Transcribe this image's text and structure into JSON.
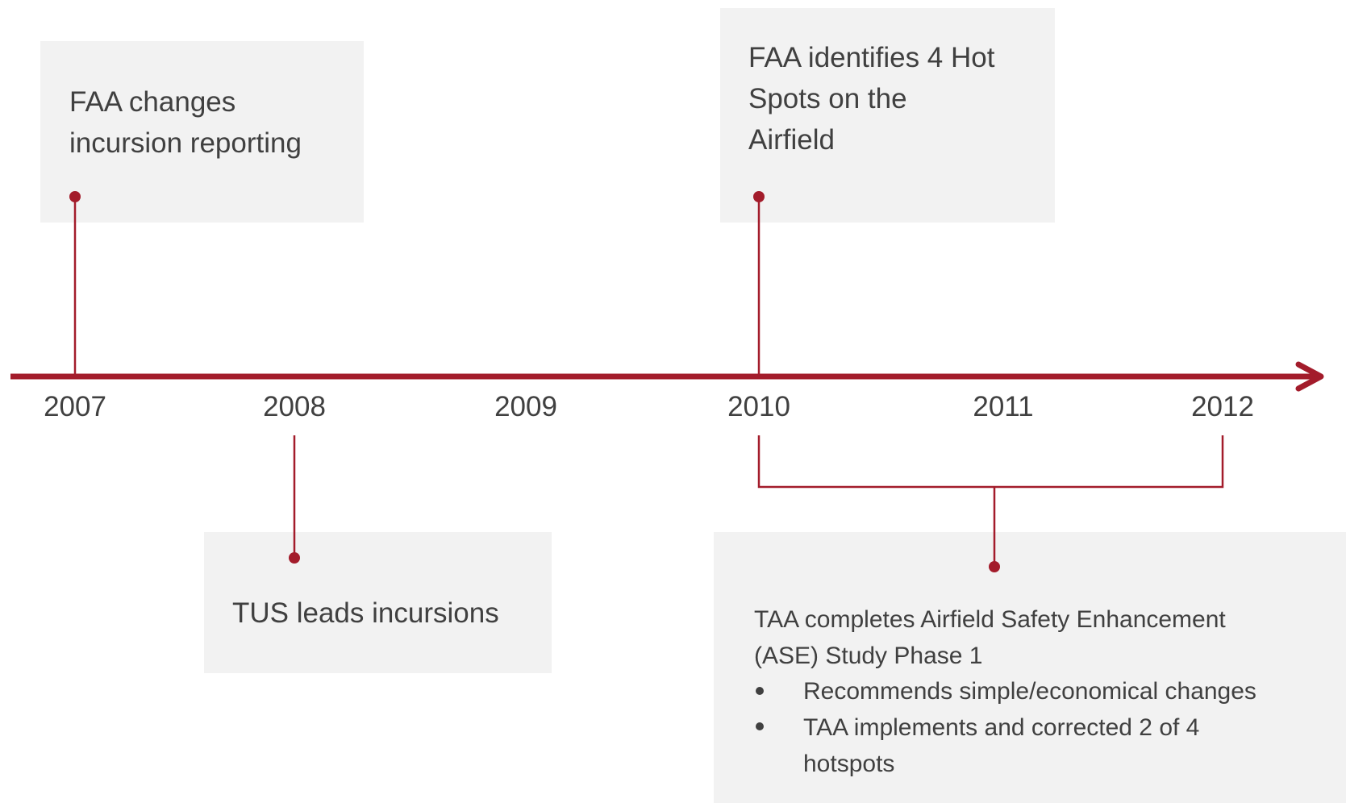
{
  "timeline": {
    "years": [
      "2007",
      "2008",
      "2009",
      "2010",
      "2011",
      "2012"
    ],
    "events": [
      {
        "lines": [
          "FAA changes",
          "incursion reporting"
        ]
      },
      {
        "lines": [
          "TUS leads incursions"
        ]
      },
      {
        "lines": [
          "FAA identifies 4 Hot",
          "Spots on the",
          "Airfield"
        ]
      },
      {
        "lines": [
          "TAA completes Airfield Safety Enhancement",
          "(ASE) Study Phase 1"
        ],
        "bullets": [
          [
            "Recommends simple/economical changes"
          ],
          [
            "TAA implements and corrected 2 of 4",
            "hotspots"
          ]
        ]
      }
    ]
  }
}
